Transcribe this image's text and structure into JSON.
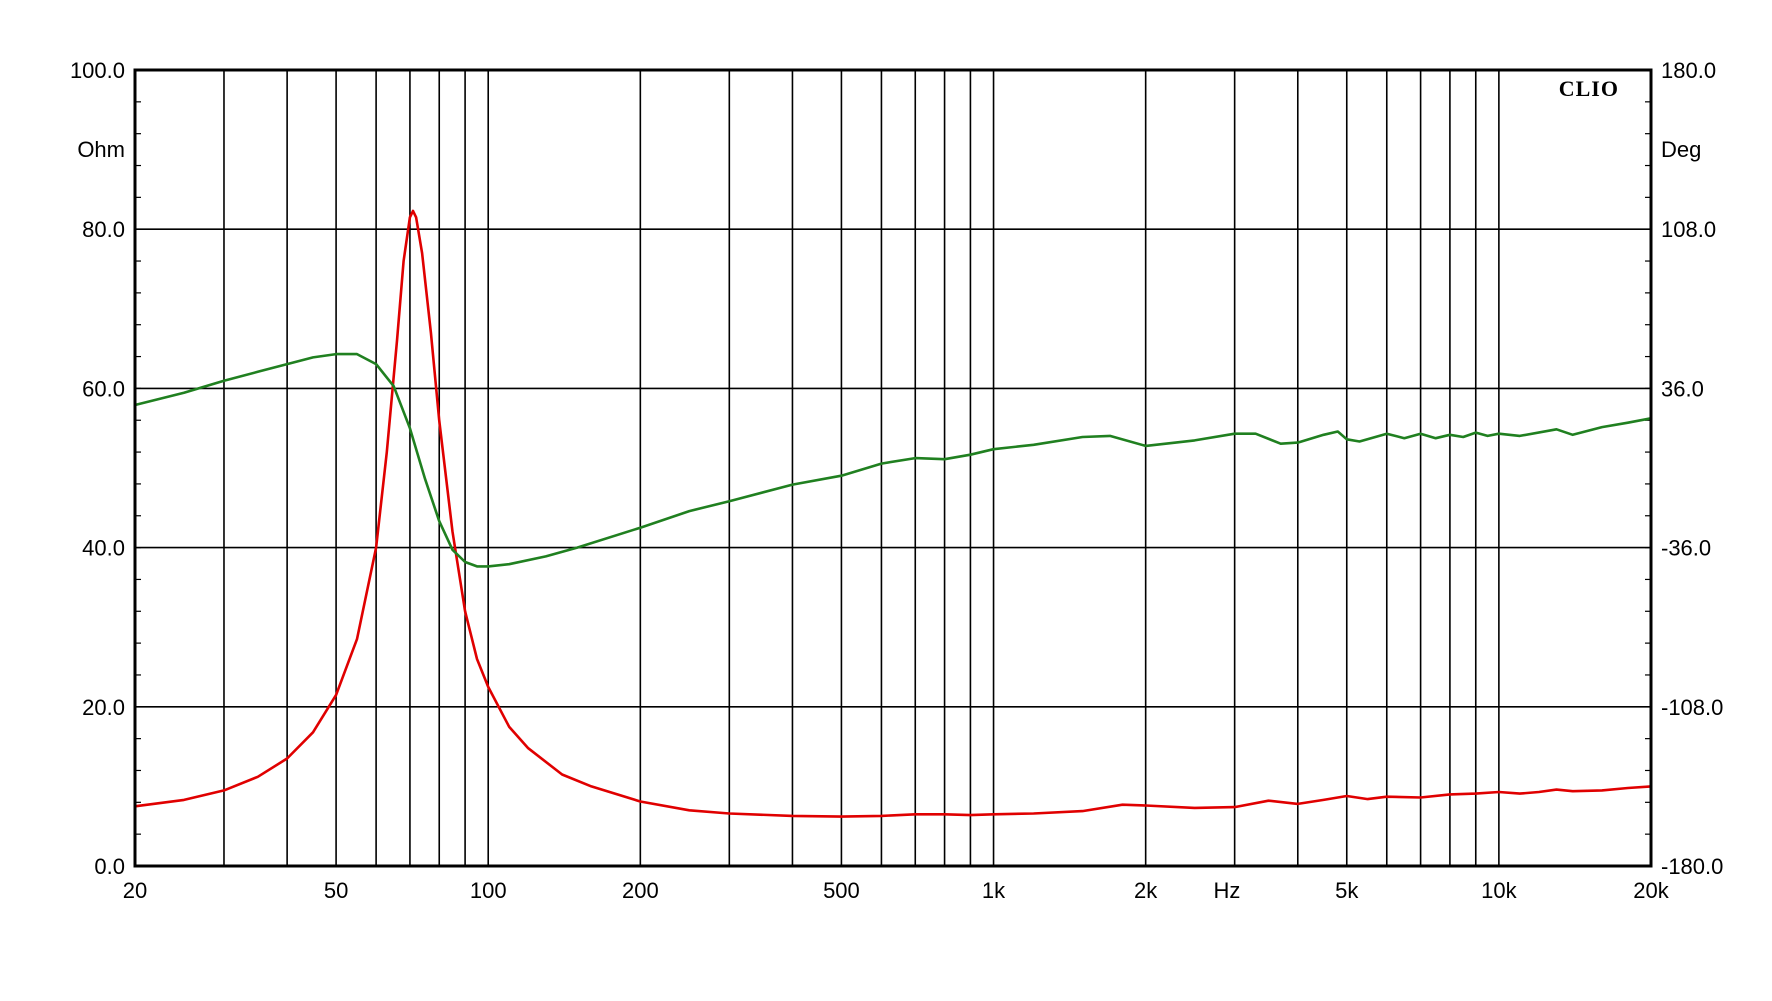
{
  "chart_data": {
    "type": "line",
    "brand": "CLIO",
    "xlabel": "Hz",
    "x_scale": "log",
    "xlim": [
      20,
      20000
    ],
    "x_ticks": [
      {
        "value": 20,
        "label": "20"
      },
      {
        "value": 50,
        "label": "50"
      },
      {
        "value": 100,
        "label": "100"
      },
      {
        "value": 200,
        "label": "200"
      },
      {
        "value": 500,
        "label": "500"
      },
      {
        "value": 1000,
        "label": "1k"
      },
      {
        "value": 2000,
        "label": "2k"
      },
      {
        "value": 5000,
        "label": "5k"
      },
      {
        "value": 10000,
        "label": "10k"
      },
      {
        "value": 20000,
        "label": "20k"
      }
    ],
    "x_gridlines": [
      20,
      30,
      40,
      50,
      60,
      70,
      80,
      90,
      100,
      200,
      300,
      400,
      500,
      600,
      700,
      800,
      900,
      1000,
      2000,
      3000,
      4000,
      5000,
      6000,
      7000,
      8000,
      9000,
      10000,
      20000
    ],
    "y_left": {
      "unit": "Ohm",
      "range": [
        0,
        100
      ],
      "ticks": [
        {
          "value": 0,
          "label": "0.0"
        },
        {
          "value": 20,
          "label": "20.0"
        },
        {
          "value": 40,
          "label": "40.0"
        },
        {
          "value": 60,
          "label": "60.0"
        },
        {
          "value": 80,
          "label": "80.0"
        },
        {
          "value": 100,
          "label": "100.0"
        }
      ]
    },
    "y_right": {
      "unit": "Deg",
      "range": [
        -180,
        180
      ],
      "ticks": [
        {
          "value": -180,
          "label": "-180.0"
        },
        {
          "value": -108,
          "label": "-108.0"
        },
        {
          "value": -36,
          "label": "-36.0"
        },
        {
          "value": 36,
          "label": "36.0"
        },
        {
          "value": 108,
          "label": "108.0"
        },
        {
          "value": 180,
          "label": "180.0"
        }
      ]
    },
    "grid": true,
    "series": [
      {
        "axis": "left",
        "color": "#e00000",
        "points": [
          [
            20,
            7.5
          ],
          [
            25,
            8.3
          ],
          [
            30,
            9.5
          ],
          [
            35,
            11.2
          ],
          [
            40,
            13.5
          ],
          [
            45,
            16.8
          ],
          [
            50,
            21.5
          ],
          [
            55,
            28.5
          ],
          [
            60,
            40
          ],
          [
            63,
            52
          ],
          [
            66,
            66
          ],
          [
            68,
            76
          ],
          [
            70,
            81.5
          ],
          [
            71,
            82.3
          ],
          [
            72,
            81.5
          ],
          [
            74,
            77
          ],
          [
            77,
            67
          ],
          [
            80,
            56
          ],
          [
            85,
            42
          ],
          [
            90,
            32
          ],
          [
            95,
            26
          ],
          [
            100,
            22.5
          ],
          [
            110,
            17.5
          ],
          [
            120,
            14.8
          ],
          [
            140,
            11.5
          ],
          [
            160,
            10
          ],
          [
            200,
            8.1
          ],
          [
            250,
            7
          ],
          [
            300,
            6.6
          ],
          [
            400,
            6.3
          ],
          [
            500,
            6.2
          ],
          [
            600,
            6.3
          ],
          [
            700,
            6.5
          ],
          [
            800,
            6.5
          ],
          [
            900,
            6.4
          ],
          [
            1000,
            6.5
          ],
          [
            1200,
            6.6
          ],
          [
            1500,
            6.9
          ],
          [
            1800,
            7.7
          ],
          [
            2000,
            7.6
          ],
          [
            2500,
            7.3
          ],
          [
            3000,
            7.4
          ],
          [
            3500,
            8.2
          ],
          [
            4000,
            7.8
          ],
          [
            4500,
            8.3
          ],
          [
            5000,
            8.8
          ],
          [
            5500,
            8.4
          ],
          [
            6000,
            8.7
          ],
          [
            7000,
            8.6
          ],
          [
            8000,
            9
          ],
          [
            9000,
            9.1
          ],
          [
            10000,
            9.3
          ],
          [
            11000,
            9.1
          ],
          [
            12000,
            9.3
          ],
          [
            13000,
            9.6
          ],
          [
            14000,
            9.4
          ],
          [
            16000,
            9.5
          ],
          [
            18000,
            9.8
          ],
          [
            20000,
            10
          ]
        ]
      },
      {
        "axis": "right",
        "color": "#208020",
        "points": [
          [
            20,
            28.5
          ],
          [
            25,
            34
          ],
          [
            30,
            39.5
          ],
          [
            35,
            43.5
          ],
          [
            40,
            47
          ],
          [
            45,
            50
          ],
          [
            50,
            51.5
          ],
          [
            55,
            51.5
          ],
          [
            60,
            47
          ],
          [
            65,
            37
          ],
          [
            70,
            18
          ],
          [
            75,
            -5
          ],
          [
            80,
            -24
          ],
          [
            85,
            -37
          ],
          [
            90,
            -42.5
          ],
          [
            95,
            -44.5
          ],
          [
            100,
            -44.5
          ],
          [
            110,
            -43.5
          ],
          [
            130,
            -40
          ],
          [
            150,
            -36
          ],
          [
            200,
            -27
          ],
          [
            250,
            -19.5
          ],
          [
            300,
            -15
          ],
          [
            400,
            -7.5
          ],
          [
            500,
            -3.5
          ],
          [
            600,
            2
          ],
          [
            700,
            4.5
          ],
          [
            800,
            4
          ],
          [
            900,
            6
          ],
          [
            1000,
            8.5
          ],
          [
            1200,
            10.5
          ],
          [
            1500,
            14
          ],
          [
            1700,
            14.5
          ],
          [
            2000,
            10
          ],
          [
            2500,
            12.5
          ],
          [
            3000,
            15.5
          ],
          [
            3300,
            15.5
          ],
          [
            3700,
            11
          ],
          [
            4000,
            11.5
          ],
          [
            4500,
            15
          ],
          [
            4800,
            16.5
          ],
          [
            5000,
            13
          ],
          [
            5300,
            12
          ],
          [
            6000,
            15.5
          ],
          [
            6500,
            13.5
          ],
          [
            7000,
            15.5
          ],
          [
            7500,
            13.5
          ],
          [
            8000,
            15
          ],
          [
            8500,
            14
          ],
          [
            9000,
            16
          ],
          [
            9500,
            14.5
          ],
          [
            10000,
            15.5
          ],
          [
            11000,
            14.5
          ],
          [
            13000,
            17.5
          ],
          [
            14000,
            15
          ],
          [
            16000,
            18.5
          ],
          [
            18000,
            20.5
          ],
          [
            20000,
            22.5
          ]
        ]
      }
    ]
  }
}
